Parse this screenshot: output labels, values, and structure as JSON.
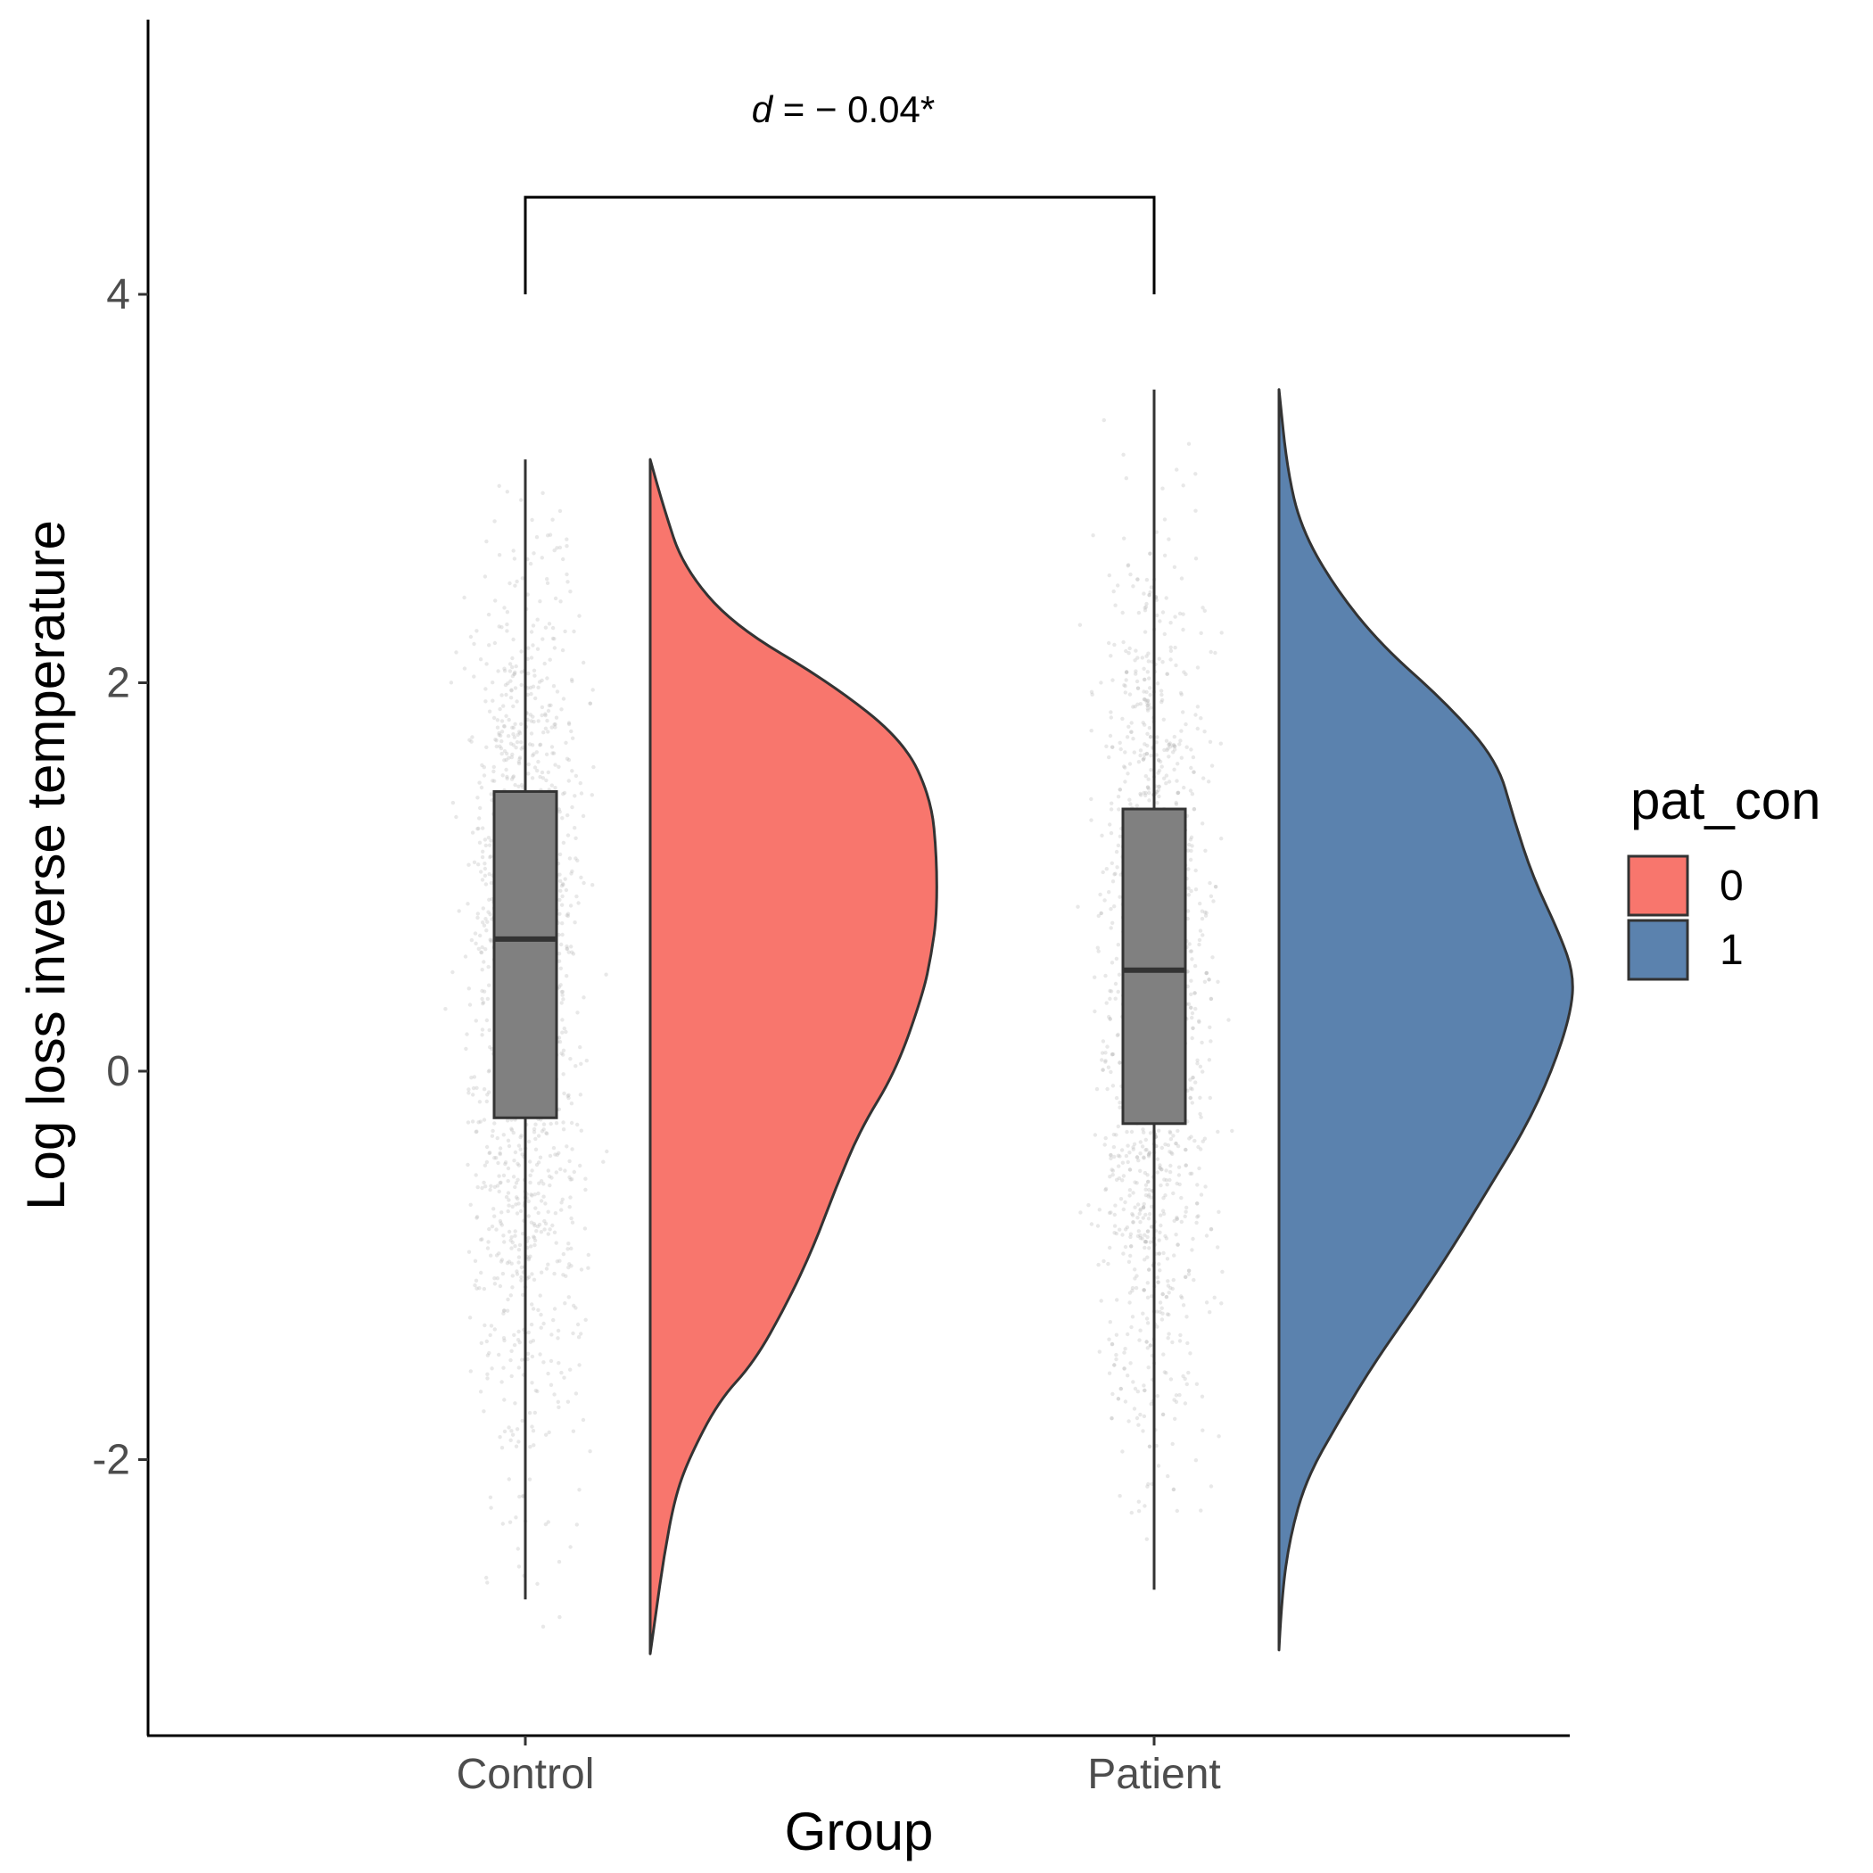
{
  "chart_data": {
    "type": "raincloud",
    "xlabel": "Group",
    "ylabel": "Log loss inverse temperature",
    "ylim": [
      -3.4,
      5.3
    ],
    "yticks": [
      -2,
      0,
      2,
      4
    ],
    "ytick_labels": [
      "-2",
      "0",
      "2",
      "4"
    ],
    "categories": [
      "Control",
      "Patient"
    ],
    "annotation": {
      "prefix": "d",
      "text": " = − 0.04*",
      "from": "Control",
      "to": "Patient",
      "bracket_y": 4.5,
      "bracket_bottom": 4.0,
      "label_y": 4.95
    },
    "legend": {
      "title": "pat_con",
      "position": "right",
      "entries": [
        {
          "label": "0",
          "color": "#F8766D"
        },
        {
          "label": "1",
          "color": "#5B82AE"
        }
      ]
    },
    "series": [
      {
        "category": "Control",
        "pat_con": "0",
        "color": "#F8766D",
        "box": {
          "whisker_low": -2.72,
          "q1": -0.24,
          "median": 0.68,
          "q3": 1.44,
          "whisker_high": 3.15
        },
        "violin_range": [
          -3.0,
          3.15
        ],
        "violin_density": [
          [
            -3.0,
            0.0
          ],
          [
            -2.8,
            0.02
          ],
          [
            -2.5,
            0.05
          ],
          [
            -2.2,
            0.09
          ],
          [
            -2.0,
            0.14
          ],
          [
            -1.7,
            0.25
          ],
          [
            -1.5,
            0.38
          ],
          [
            -1.2,
            0.5
          ],
          [
            -0.9,
            0.6
          ],
          [
            -0.6,
            0.68
          ],
          [
            -0.3,
            0.77
          ],
          [
            0.0,
            0.9
          ],
          [
            0.4,
            1.0
          ],
          [
            0.6,
            1.03
          ],
          [
            0.8,
            1.05
          ],
          [
            1.1,
            1.05
          ],
          [
            1.4,
            1.03
          ],
          [
            1.7,
            0.93
          ],
          [
            2.0,
            0.66
          ],
          [
            2.3,
            0.3
          ],
          [
            2.6,
            0.12
          ],
          [
            2.9,
            0.05
          ],
          [
            3.15,
            0.0
          ]
        ]
      },
      {
        "category": "Patient",
        "pat_con": "1",
        "color": "#5B82AE",
        "box": {
          "whisker_low": -2.67,
          "q1": -0.27,
          "median": 0.52,
          "q3": 1.35,
          "whisker_high": 3.51
        },
        "violin_range": [
          -2.98,
          3.51
        ],
        "violin_density": [
          [
            -2.98,
            0.0
          ],
          [
            -2.7,
            0.01
          ],
          [
            -2.4,
            0.04
          ],
          [
            -2.1,
            0.1
          ],
          [
            -1.8,
            0.22
          ],
          [
            -1.5,
            0.35
          ],
          [
            -1.2,
            0.5
          ],
          [
            -0.9,
            0.64
          ],
          [
            -0.6,
            0.77
          ],
          [
            -0.3,
            0.9
          ],
          [
            0.0,
            1.0
          ],
          [
            0.3,
            1.07
          ],
          [
            0.5,
            1.08
          ],
          [
            0.7,
            1.03
          ],
          [
            1.0,
            0.93
          ],
          [
            1.3,
            0.86
          ],
          [
            1.6,
            0.8
          ],
          [
            1.9,
            0.61
          ],
          [
            2.2,
            0.37
          ],
          [
            2.5,
            0.2
          ],
          [
            2.8,
            0.08
          ],
          [
            3.1,
            0.03
          ],
          [
            3.51,
            0.0
          ]
        ]
      }
    ]
  }
}
